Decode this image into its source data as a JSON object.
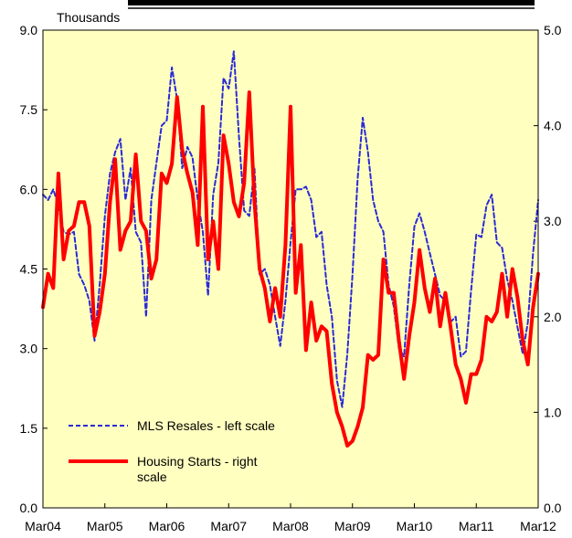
{
  "chart_data": {
    "type": "line",
    "title": "",
    "left_axis_unit": "Thousands",
    "ylim_left": [
      0,
      9.0
    ],
    "ylim_right": [
      0,
      5.0
    ],
    "y_ticks_left": [
      "0.0",
      "1.5",
      "3.0",
      "4.5",
      "6.0",
      "7.5",
      "9.0"
    ],
    "y_ticks_right": [
      "0.0",
      "1.0",
      "2.0",
      "3.0",
      "4.0",
      "5.0"
    ],
    "x_ticks": [
      "Mar04",
      "Mar05",
      "Mar06",
      "Mar07",
      "Mar08",
      "Mar09",
      "Mar10",
      "Mar11",
      "Mar12"
    ],
    "grid": false,
    "legend_position": "bottom-left",
    "plot_background": "#ffffc0",
    "series": [
      {
        "name": "MLS Resales - left scale",
        "axis": "left",
        "color": "#2b2bd6",
        "style": "dashed",
        "values": [
          5.9,
          5.8,
          6.0,
          5.7,
          5.2,
          5.15,
          5.2,
          4.4,
          4.2,
          3.9,
          3.15,
          4.2,
          5.5,
          6.3,
          6.7,
          6.95,
          5.8,
          6.4,
          5.2,
          5.0,
          3.6,
          5.8,
          6.5,
          7.2,
          7.3,
          8.3,
          7.7,
          6.4,
          6.8,
          6.6,
          5.8,
          5.2,
          4.0,
          5.9,
          6.5,
          8.1,
          7.9,
          8.6,
          7.0,
          5.6,
          5.5,
          6.4,
          4.4,
          4.5,
          4.2,
          3.6,
          3.05,
          3.9,
          5.0,
          6.0,
          6.0,
          6.05,
          5.8,
          5.1,
          5.2,
          4.2,
          3.6,
          2.4,
          1.9,
          2.9,
          4.4,
          6.2,
          7.35,
          6.7,
          5.8,
          5.4,
          5.2,
          4.2,
          3.8,
          3.0,
          2.85,
          4.2,
          5.3,
          5.55,
          5.2,
          4.8,
          4.4,
          4.0,
          3.9,
          3.5,
          3.6,
          2.85,
          2.95,
          4.1,
          5.15,
          5.1,
          5.7,
          5.9,
          5.0,
          4.9,
          4.3,
          3.9,
          3.4,
          2.9,
          3.5,
          4.8,
          5.8
        ]
      },
      {
        "name": "Housing Starts - right scale",
        "axis": "right",
        "color": "#ff0000",
        "style": "solid",
        "values": [
          2.1,
          2.45,
          2.3,
          3.5,
          2.6,
          2.9,
          2.95,
          3.2,
          3.2,
          2.95,
          1.8,
          2.05,
          2.45,
          3.2,
          3.65,
          2.7,
          2.9,
          3.0,
          3.7,
          3.0,
          2.9,
          2.4,
          2.6,
          3.5,
          3.4,
          3.6,
          4.3,
          3.75,
          3.5,
          3.3,
          2.75,
          4.2,
          2.6,
          3.0,
          2.5,
          3.9,
          3.6,
          3.2,
          3.05,
          3.4,
          4.35,
          3.2,
          2.5,
          2.3,
          1.95,
          2.3,
          2.0,
          2.75,
          4.2,
          2.25,
          2.75,
          1.65,
          2.15,
          1.75,
          1.9,
          1.85,
          1.3,
          1.0,
          0.85,
          0.65,
          0.7,
          0.85,
          1.05,
          1.6,
          1.55,
          1.6,
          2.6,
          2.25,
          2.25,
          1.75,
          1.35,
          1.8,
          2.15,
          2.7,
          2.3,
          2.05,
          2.4,
          1.9,
          2.25,
          1.9,
          1.5,
          1.35,
          1.1,
          1.4,
          1.4,
          1.55,
          2.0,
          1.95,
          2.05,
          2.45,
          2.0,
          2.5,
          2.2,
          1.75,
          1.5,
          2.1,
          2.45
        ]
      }
    ]
  }
}
